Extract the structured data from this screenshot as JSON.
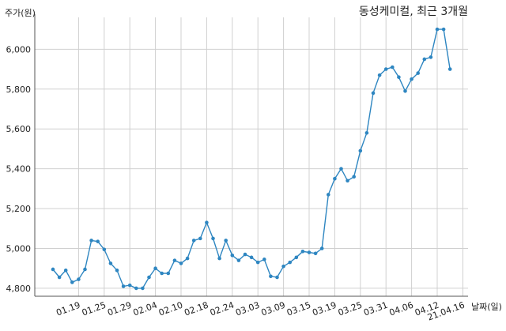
{
  "chart_data": {
    "type": "line",
    "title": "동성케미컬, 최근 3개월",
    "ylabel": "주가(원)",
    "xlabel": "날짜(일)",
    "ylim": [
      4760,
      6160
    ],
    "yticks": [
      4800,
      5000,
      5200,
      5400,
      5600,
      5800,
      6000
    ],
    "ytick_labels": [
      "4,800",
      "5,000",
      "5,200",
      "5,400",
      "5,600",
      "5,800",
      "6,000"
    ],
    "grid": true,
    "line_color": "#2e86c1",
    "xtick_labels": [
      "01.19",
      "01.25",
      "01.29",
      "02.04",
      "02.10",
      "02.18",
      "02.24",
      "03.03",
      "03.09",
      "03.15",
      "03.19",
      "03.25",
      "03.31",
      "04.06",
      "04.12",
      "21.04.16"
    ],
    "xtick_index": [
      4,
      8,
      12,
      16,
      20,
      24,
      28,
      32,
      36,
      40,
      44,
      48,
      52,
      56,
      60,
      64
    ],
    "values": [
      4895,
      4855,
      4890,
      4830,
      4845,
      4895,
      5040,
      5035,
      4995,
      4925,
      4890,
      4810,
      4815,
      4800,
      4800,
      4855,
      4900,
      4875,
      4875,
      4940,
      4925,
      4950,
      5040,
      5050,
      5130,
      5050,
      4950,
      5040,
      4965,
      4940,
      4970,
      4955,
      4930,
      4945,
      4860,
      4855,
      4910,
      4930,
      4955,
      4985,
      4980,
      4975,
      5000,
      5270,
      5350,
      5400,
      5340,
      5360,
      5490,
      5580,
      5780,
      5870,
      5900,
      5910,
      5860,
      5790,
      5850,
      5880,
      5950,
      5960,
      6100,
      6100,
      5900
    ]
  }
}
